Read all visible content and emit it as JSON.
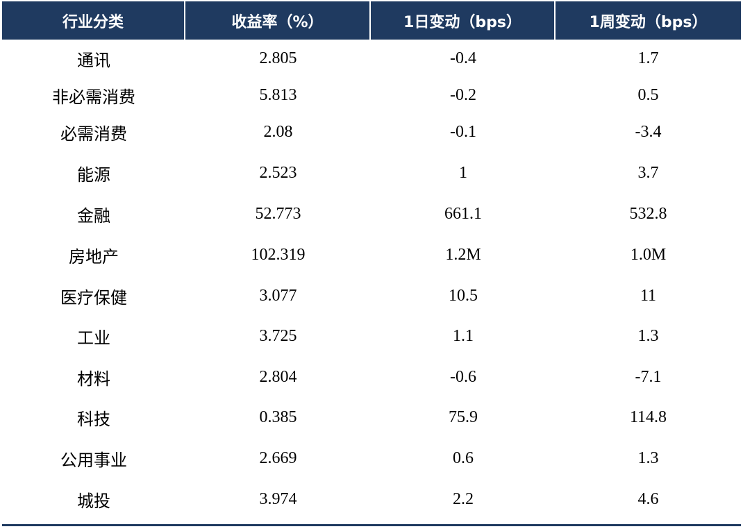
{
  "table": {
    "headers": [
      "行业分类",
      "收益率（%）",
      "1日变动（bps）",
      "1周变动（bps）"
    ],
    "rows": [
      [
        "通讯",
        "2.805",
        "-0.4",
        "1.7"
      ],
      [
        "非必需消费",
        "5.813",
        "-0.2",
        "0.5"
      ],
      [
        "必需消费",
        "2.08",
        "-0.1",
        "-3.4"
      ],
      [
        "能源",
        "2.523",
        "1",
        "3.7"
      ],
      [
        "金融",
        "52.773",
        "661.1",
        "532.8"
      ],
      [
        "房地产",
        "102.319",
        "1.2M",
        "1.0M"
      ],
      [
        "医疗保健",
        "3.077",
        "10.5",
        "11"
      ],
      [
        "工业",
        "3.725",
        "1.1",
        "1.3"
      ],
      [
        "材料",
        "2.804",
        "-0.6",
        "-7.1"
      ],
      [
        "科技",
        "0.385",
        "75.9",
        "114.8"
      ],
      [
        "公用事业",
        "2.669",
        "0.6",
        "1.3"
      ],
      [
        "城投",
        "3.974",
        "2.2",
        "4.6"
      ]
    ]
  },
  "colors": {
    "header_bg": "#1f3a60",
    "header_text": "#ffffff",
    "body_text": "#000000"
  }
}
